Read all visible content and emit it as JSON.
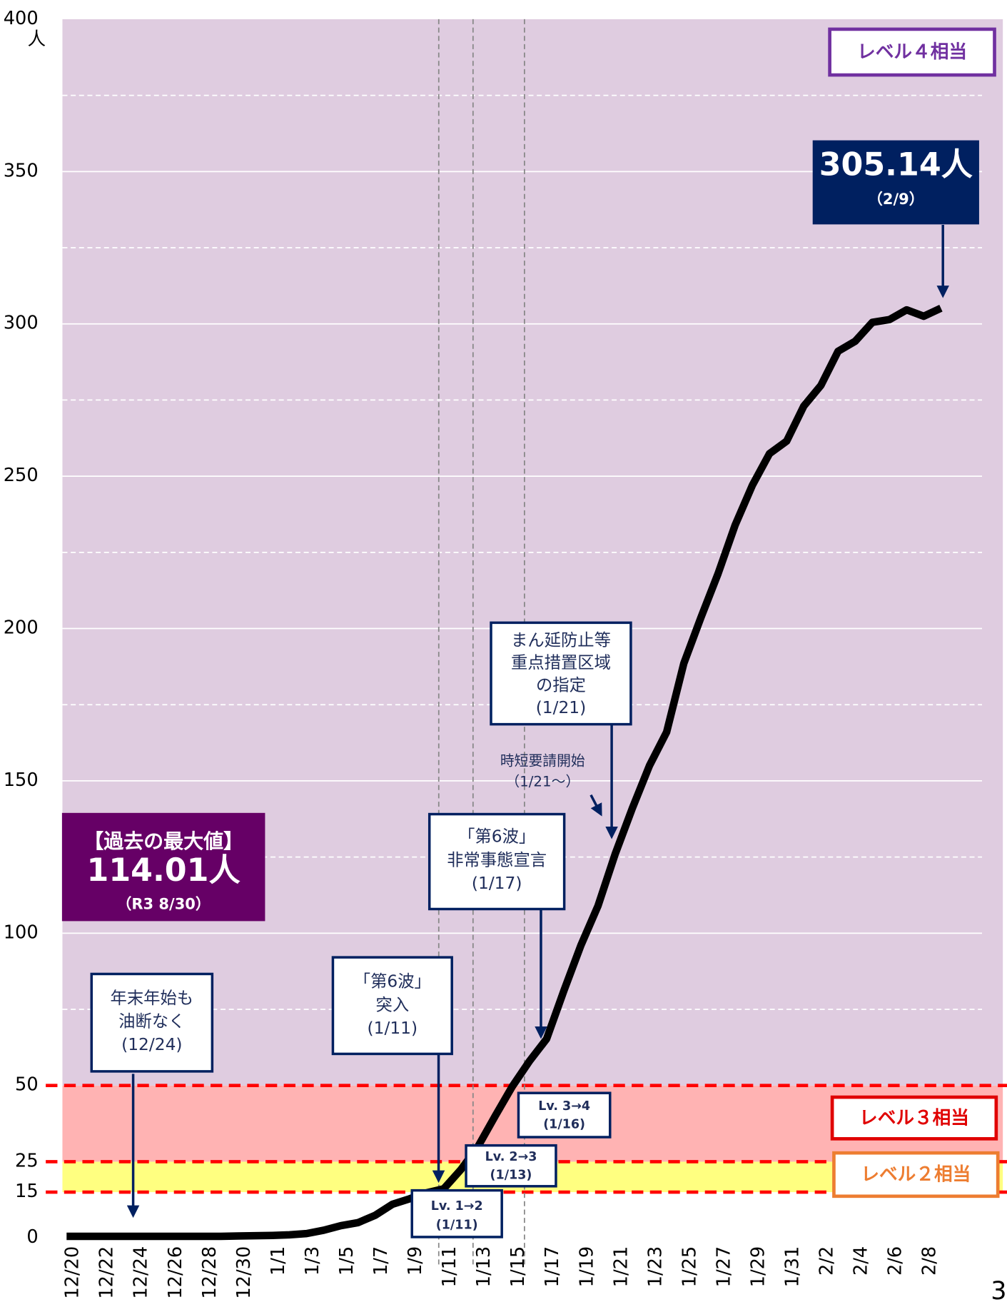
{
  "chart_data": {
    "type": "line",
    "categories": [
      "12/20",
      null,
      "12/22",
      null,
      "12/24",
      null,
      "12/26",
      null,
      "12/28",
      null,
      "12/30",
      null,
      "1/1",
      null,
      "1/3",
      null,
      "1/5",
      null,
      "1/7",
      null,
      "1/9",
      null,
      "1/11",
      null,
      "1/13",
      null,
      "1/15",
      null,
      "1/17",
      null,
      "1/19",
      null,
      "1/21",
      null,
      "1/23",
      null,
      "1/25",
      null,
      "1/27",
      null,
      "1/29",
      null,
      "1/31",
      null,
      "2/2",
      null,
      "2/4",
      null,
      "2/6",
      null,
      "2/8",
      null
    ],
    "values": [
      0.5,
      0.5,
      0.5,
      0.5,
      0.5,
      0.5,
      0.5,
      0.5,
      0.5,
      0.5,
      0.6,
      0.7,
      0.8,
      1,
      1.4,
      2.5,
      4,
      5,
      7.4,
      11,
      12.8,
      14.8,
      16.1,
      22.4,
      30,
      40,
      49.7,
      58,
      65.3,
      81,
      96,
      109,
      126,
      141,
      155,
      166,
      188.5,
      203.6,
      218,
      234,
      247,
      257.4,
      261.5,
      273,
      279.8,
      291,
      294.3,
      300.5,
      301.4,
      304.6,
      302.5,
      305.14
    ],
    "color": "#000000",
    "ylim": [
      0,
      400
    ],
    "yticks": [
      0,
      15,
      25,
      50,
      100,
      150,
      200,
      250,
      300,
      350,
      400
    ],
    "y_unit": "人",
    "minor_grid": [
      75,
      125,
      175,
      225,
      275,
      325,
      375
    ],
    "bands": [
      {
        "from": 15,
        "to": 25,
        "color": "#ffff80",
        "label": "レベル２相当"
      },
      {
        "from": 25,
        "to": 50,
        "color": "#ffb3b3",
        "label": "レベル３相当"
      },
      {
        "from": 50,
        "to": 400,
        "color": "#dfcce0",
        "label": "レベル４相当"
      }
    ],
    "annotations": [
      {
        "lines": [
          "年末年始も",
          "油断なく",
          "(12/24)"
        ]
      },
      {
        "lines": [
          "「第6波」",
          "突入",
          "(1/11)"
        ]
      },
      {
        "lines": [
          "「第6波」",
          "非常事態宣言",
          "(1/17)"
        ]
      },
      {
        "lines": [
          "まん延防止等",
          "重点措置区域",
          "の指定",
          "(1/21)"
        ]
      },
      {
        "lines": [
          "時短要請開始",
          "（1/21～）"
        ]
      },
      {
        "lines": [
          "Lv. 1→2",
          "(1/11)"
        ]
      },
      {
        "lines": [
          "Lv. 2→3",
          "(1/13)"
        ]
      },
      {
        "lines": [
          "Lv. 3→4",
          "(1/16)"
        ]
      },
      {
        "lines": [
          "【過去の最大値】",
          "114.01人",
          "（R3 8/30）"
        ]
      },
      {
        "lines": [
          "305.14人",
          "（2/9）"
        ]
      }
    ],
    "page_number": "3"
  }
}
